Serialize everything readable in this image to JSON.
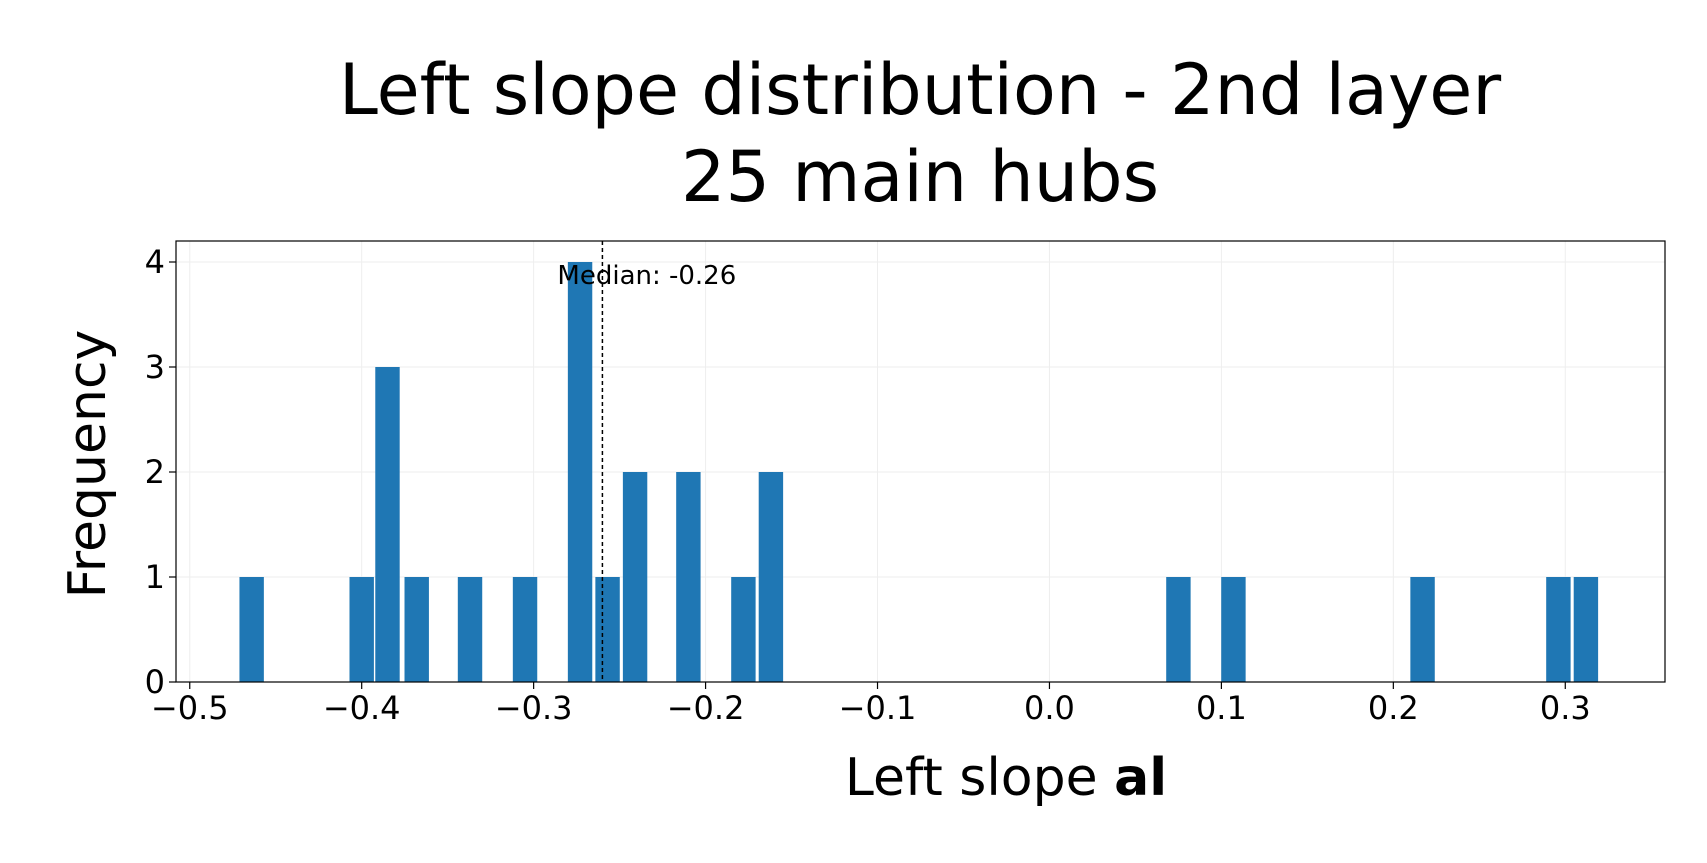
{
  "chart_data": {
    "type": "bar",
    "title_lines": [
      "Left slope distribution - 2nd layer",
      "25 main hubs"
    ],
    "xlabel_prefix": "Left slope ",
    "xlabel_bold": "al",
    "ylabel": "Frequency",
    "xlim": [
      -0.508,
      0.358
    ],
    "ylim": [
      0,
      4.2
    ],
    "xticks": [
      -0.5,
      -0.4,
      -0.3,
      -0.2,
      -0.1,
      0.0,
      0.1,
      0.2,
      0.3
    ],
    "xtick_labels": [
      "−0.5",
      "−0.4",
      "−0.3",
      "−0.2",
      "−0.1",
      "0.0",
      "0.1",
      "0.2",
      "0.3"
    ],
    "yticks": [
      0,
      1,
      2,
      3,
      4
    ],
    "ytick_labels": [
      "0",
      "1",
      "2",
      "3",
      "4"
    ],
    "bar_width": 0.0142,
    "x": [
      -0.464,
      -0.4,
      -0.385,
      -0.368,
      -0.337,
      -0.305,
      -0.273,
      -0.257,
      -0.241,
      -0.21,
      -0.178,
      -0.162,
      0.075,
      0.107,
      0.217,
      0.296,
      0.312
    ],
    "values": [
      1,
      1,
      3,
      1,
      1,
      1,
      4,
      1,
      2,
      2,
      1,
      2,
      1,
      1,
      1,
      1,
      1
    ],
    "bar_color": "#1f77b4",
    "grid": true,
    "median": -0.26,
    "median_label": "Median: -0.26"
  }
}
